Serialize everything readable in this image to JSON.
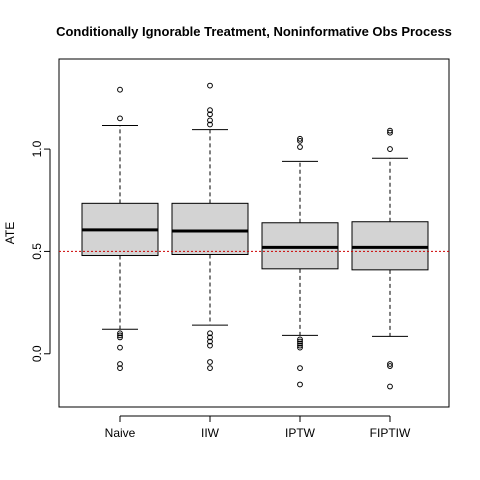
{
  "chart_data": {
    "type": "box",
    "title": "Conditionally Ignorable Treatment, Noninformative Obs Process",
    "xlabel": "",
    "ylabel": "ATE",
    "ylim": [
      -0.26,
      1.44
    ],
    "yticks": [
      0.0,
      0.5,
      1.0
    ],
    "ytick_labels": [
      "0.0",
      "0.5",
      "1.0"
    ],
    "reference_line": {
      "y": 0.5,
      "style": "dotted",
      "color": "#cc0000"
    },
    "box_fill": "#d3d3d3",
    "categories": [
      "Naive",
      "IIW",
      "IPTW",
      "FIPTIW"
    ],
    "boxes": [
      {
        "label": "Naive",
        "whisker_low": 0.12,
        "q1": 0.48,
        "median": 0.605,
        "q3": 0.735,
        "whisker_high": 1.115,
        "outliers": [
          1.29,
          1.15,
          0.1,
          0.09,
          0.08,
          0.03,
          -0.05,
          -0.07
        ]
      },
      {
        "label": "IIW",
        "whisker_low": 0.14,
        "q1": 0.485,
        "median": 0.6,
        "q3": 0.735,
        "whisker_high": 1.095,
        "outliers": [
          1.31,
          1.19,
          1.17,
          1.14,
          1.12,
          0.1,
          0.08,
          0.06,
          0.04,
          -0.04,
          -0.07
        ]
      },
      {
        "label": "IPTW",
        "whisker_low": 0.09,
        "q1": 0.415,
        "median": 0.52,
        "q3": 0.64,
        "whisker_high": 0.94,
        "outliers": [
          1.05,
          1.04,
          1.01,
          0.07,
          0.06,
          0.05,
          0.04,
          0.03,
          -0.07,
          -0.15
        ]
      },
      {
        "label": "FIPTIW",
        "whisker_low": 0.085,
        "q1": 0.41,
        "median": 0.52,
        "q3": 0.645,
        "whisker_high": 0.955,
        "outliers": [
          1.09,
          1.08,
          1.0,
          -0.05,
          -0.06,
          -0.16
        ]
      }
    ]
  }
}
